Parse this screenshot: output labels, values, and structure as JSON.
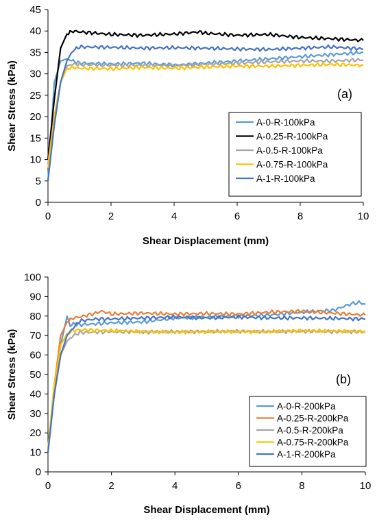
{
  "chart_data": [
    {
      "type": "line",
      "panel_label": "(a)",
      "xlabel": "Shear Displacement (mm)",
      "ylabel": "Shear Stress (kPa)",
      "xlim": [
        0,
        10
      ],
      "ylim": [
        0,
        45
      ],
      "xticks": [
        "0",
        "2",
        "4",
        "6",
        "8",
        "10"
      ],
      "yticks": [
        "0",
        "5",
        "10",
        "15",
        "20",
        "25",
        "30",
        "35",
        "40",
        "45"
      ],
      "grid": false,
      "legend_position": "bottom-right",
      "series": [
        {
          "name": "A-0-R-100kPa",
          "color": "#5b9bd5",
          "points": [
            [
              0,
              5
            ],
            [
              0.2,
              28
            ],
            [
              0.4,
              33
            ],
            [
              0.6,
              33.5
            ],
            [
              0.8,
              33
            ],
            [
              1,
              32.5
            ],
            [
              2,
              32.3
            ],
            [
              3,
              32.5
            ],
            [
              4,
              32
            ],
            [
              5,
              32.5
            ],
            [
              6,
              33
            ],
            [
              7,
              33.5
            ],
            [
              8,
              34
            ],
            [
              9,
              34.5
            ],
            [
              10,
              35
            ]
          ]
        },
        {
          "name": "A-0.25-R-100kPa",
          "color": "#000000",
          "points": [
            [
              0,
              10
            ],
            [
              0.2,
              24
            ],
            [
              0.4,
              36
            ],
            [
              0.6,
              39.3
            ],
            [
              0.8,
              40
            ],
            [
              1,
              39.8
            ],
            [
              2,
              39.2
            ],
            [
              3,
              39
            ],
            [
              4,
              39.3
            ],
            [
              4.8,
              39.8
            ],
            [
              5,
              39.5
            ],
            [
              6,
              39
            ],
            [
              7,
              39.2
            ],
            [
              8,
              38.5
            ],
            [
              9,
              38.2
            ],
            [
              10,
              37.8
            ]
          ]
        },
        {
          "name": "A-0.5-R-100kPa",
          "color": "#a5a5a5",
          "points": [
            [
              0,
              9
            ],
            [
              0.2,
              20
            ],
            [
              0.4,
              28
            ],
            [
              0.6,
              31.8
            ],
            [
              0.8,
              32.3
            ],
            [
              1,
              32.2
            ],
            [
              2,
              32
            ],
            [
              3,
              32
            ],
            [
              4,
              32
            ],
            [
              5,
              32.2
            ],
            [
              6,
              32.5
            ],
            [
              7,
              32.8
            ],
            [
              8,
              33
            ],
            [
              9,
              33
            ],
            [
              10,
              33.3
            ]
          ]
        },
        {
          "name": "A-0.75-R-100kPa",
          "color": "#ffc000",
          "points": [
            [
              0,
              8
            ],
            [
              0.2,
              20
            ],
            [
              0.4,
              28
            ],
            [
              0.6,
              31.3
            ],
            [
              0.8,
              31.5
            ],
            [
              1,
              31.3
            ],
            [
              2,
              31.2
            ],
            [
              3,
              31.5
            ],
            [
              4,
              31.3
            ],
            [
              5,
              31.6
            ],
            [
              6,
              31.8
            ],
            [
              7,
              31.8
            ],
            [
              8,
              32
            ],
            [
              9,
              32.2
            ],
            [
              10,
              32
            ]
          ]
        },
        {
          "name": "A-1-R-100kPa",
          "color": "#4472c4",
          "points": [
            [
              0,
              5
            ],
            [
              0.2,
              18
            ],
            [
              0.4,
              28
            ],
            [
              0.6,
              33
            ],
            [
              0.8,
              35.5
            ],
            [
              1,
              36.3
            ],
            [
              2,
              36.2
            ],
            [
              3,
              36
            ],
            [
              4,
              36.1
            ],
            [
              5,
              36
            ],
            [
              6,
              35.8
            ],
            [
              7,
              35.7
            ],
            [
              8,
              36
            ],
            [
              9,
              36.3
            ],
            [
              10,
              35.8
            ]
          ]
        }
      ]
    },
    {
      "type": "line",
      "panel_label": "(b)",
      "xlabel": "Shear Displacement (mm)",
      "ylabel": "Shear Stress (kPa)",
      "xlim": [
        0,
        10
      ],
      "ylim": [
        0,
        100
      ],
      "xticks": [
        "0",
        "2",
        "4",
        "6",
        "8",
        "10"
      ],
      "yticks": [
        "0",
        "10",
        "20",
        "30",
        "40",
        "50",
        "60",
        "70",
        "80",
        "90",
        "100"
      ],
      "grid": false,
      "legend_position": "bottom-right",
      "series": [
        {
          "name": "A-0-R-200kPa",
          "color": "#5b9bd5",
          "points": [
            [
              0,
              10
            ],
            [
              0.2,
              40
            ],
            [
              0.4,
              65
            ],
            [
              0.6,
              80
            ],
            [
              0.7,
              75
            ],
            [
              0.8,
              76
            ],
            [
              1,
              75.5
            ],
            [
              1.5,
              76
            ],
            [
              2,
              76.5
            ],
            [
              3,
              77
            ],
            [
              4,
              79
            ],
            [
              5,
              79.5
            ],
            [
              6,
              80
            ],
            [
              7,
              80.5
            ],
            [
              8,
              82
            ],
            [
              9,
              83
            ],
            [
              9.5,
              86
            ],
            [
              9.8,
              87
            ],
            [
              10,
              86
            ]
          ]
        },
        {
          "name": "A-0.25-R-200kPa",
          "color": "#ed7d31",
          "points": [
            [
              0,
              10
            ],
            [
              0.2,
              45
            ],
            [
              0.4,
              70
            ],
            [
              0.6,
              77
            ],
            [
              0.8,
              79
            ],
            [
              1,
              79.5
            ],
            [
              1.5,
              81.5
            ],
            [
              1.7,
              82.5
            ],
            [
              2,
              81
            ],
            [
              3,
              81.5
            ],
            [
              4,
              81
            ],
            [
              5,
              81.3
            ],
            [
              6,
              81
            ],
            [
              7,
              82
            ],
            [
              8,
              82.5
            ],
            [
              9,
              81.5
            ],
            [
              10,
              80.5
            ]
          ]
        },
        {
          "name": "A-0.5-R-200kPa",
          "color": "#a5a5a5",
          "points": [
            [
              0,
              12
            ],
            [
              0.2,
              40
            ],
            [
              0.4,
              60
            ],
            [
              0.6,
              67
            ],
            [
              0.8,
              70
            ],
            [
              1,
              71.5
            ],
            [
              2,
              72
            ],
            [
              3,
              71.8
            ],
            [
              4,
              72
            ],
            [
              5,
              72
            ],
            [
              6,
              72.2
            ],
            [
              7,
              72
            ],
            [
              8,
              72.2
            ],
            [
              9,
              72
            ],
            [
              10,
              72
            ]
          ]
        },
        {
          "name": "A-0.75-R-200kPa",
          "color": "#ffc000",
          "points": [
            [
              0,
              12
            ],
            [
              0.2,
              45
            ],
            [
              0.4,
              65
            ],
            [
              0.6,
              71
            ],
            [
              0.8,
              72.5
            ],
            [
              1,
              73
            ],
            [
              2,
              72.5
            ],
            [
              3,
              72
            ],
            [
              4,
              71.8
            ],
            [
              5,
              72
            ],
            [
              6,
              72
            ],
            [
              7,
              72
            ],
            [
              8,
              72.5
            ],
            [
              9,
              72.3
            ],
            [
              10,
              72
            ]
          ]
        },
        {
          "name": "A-1-R-200kPa",
          "color": "#4472c4",
          "points": [
            [
              0,
              10
            ],
            [
              0.2,
              40
            ],
            [
              0.4,
              60
            ],
            [
              0.6,
              70
            ],
            [
              0.8,
              74
            ],
            [
              1,
              77.5
            ],
            [
              1.5,
              78.5
            ],
            [
              2,
              78.5
            ],
            [
              3,
              79
            ],
            [
              4,
              79.5
            ],
            [
              5,
              79
            ],
            [
              6,
              79.5
            ],
            [
              7,
              79
            ],
            [
              8,
              79
            ],
            [
              9,
              78.8
            ],
            [
              10,
              78.5
            ]
          ]
        }
      ]
    }
  ]
}
